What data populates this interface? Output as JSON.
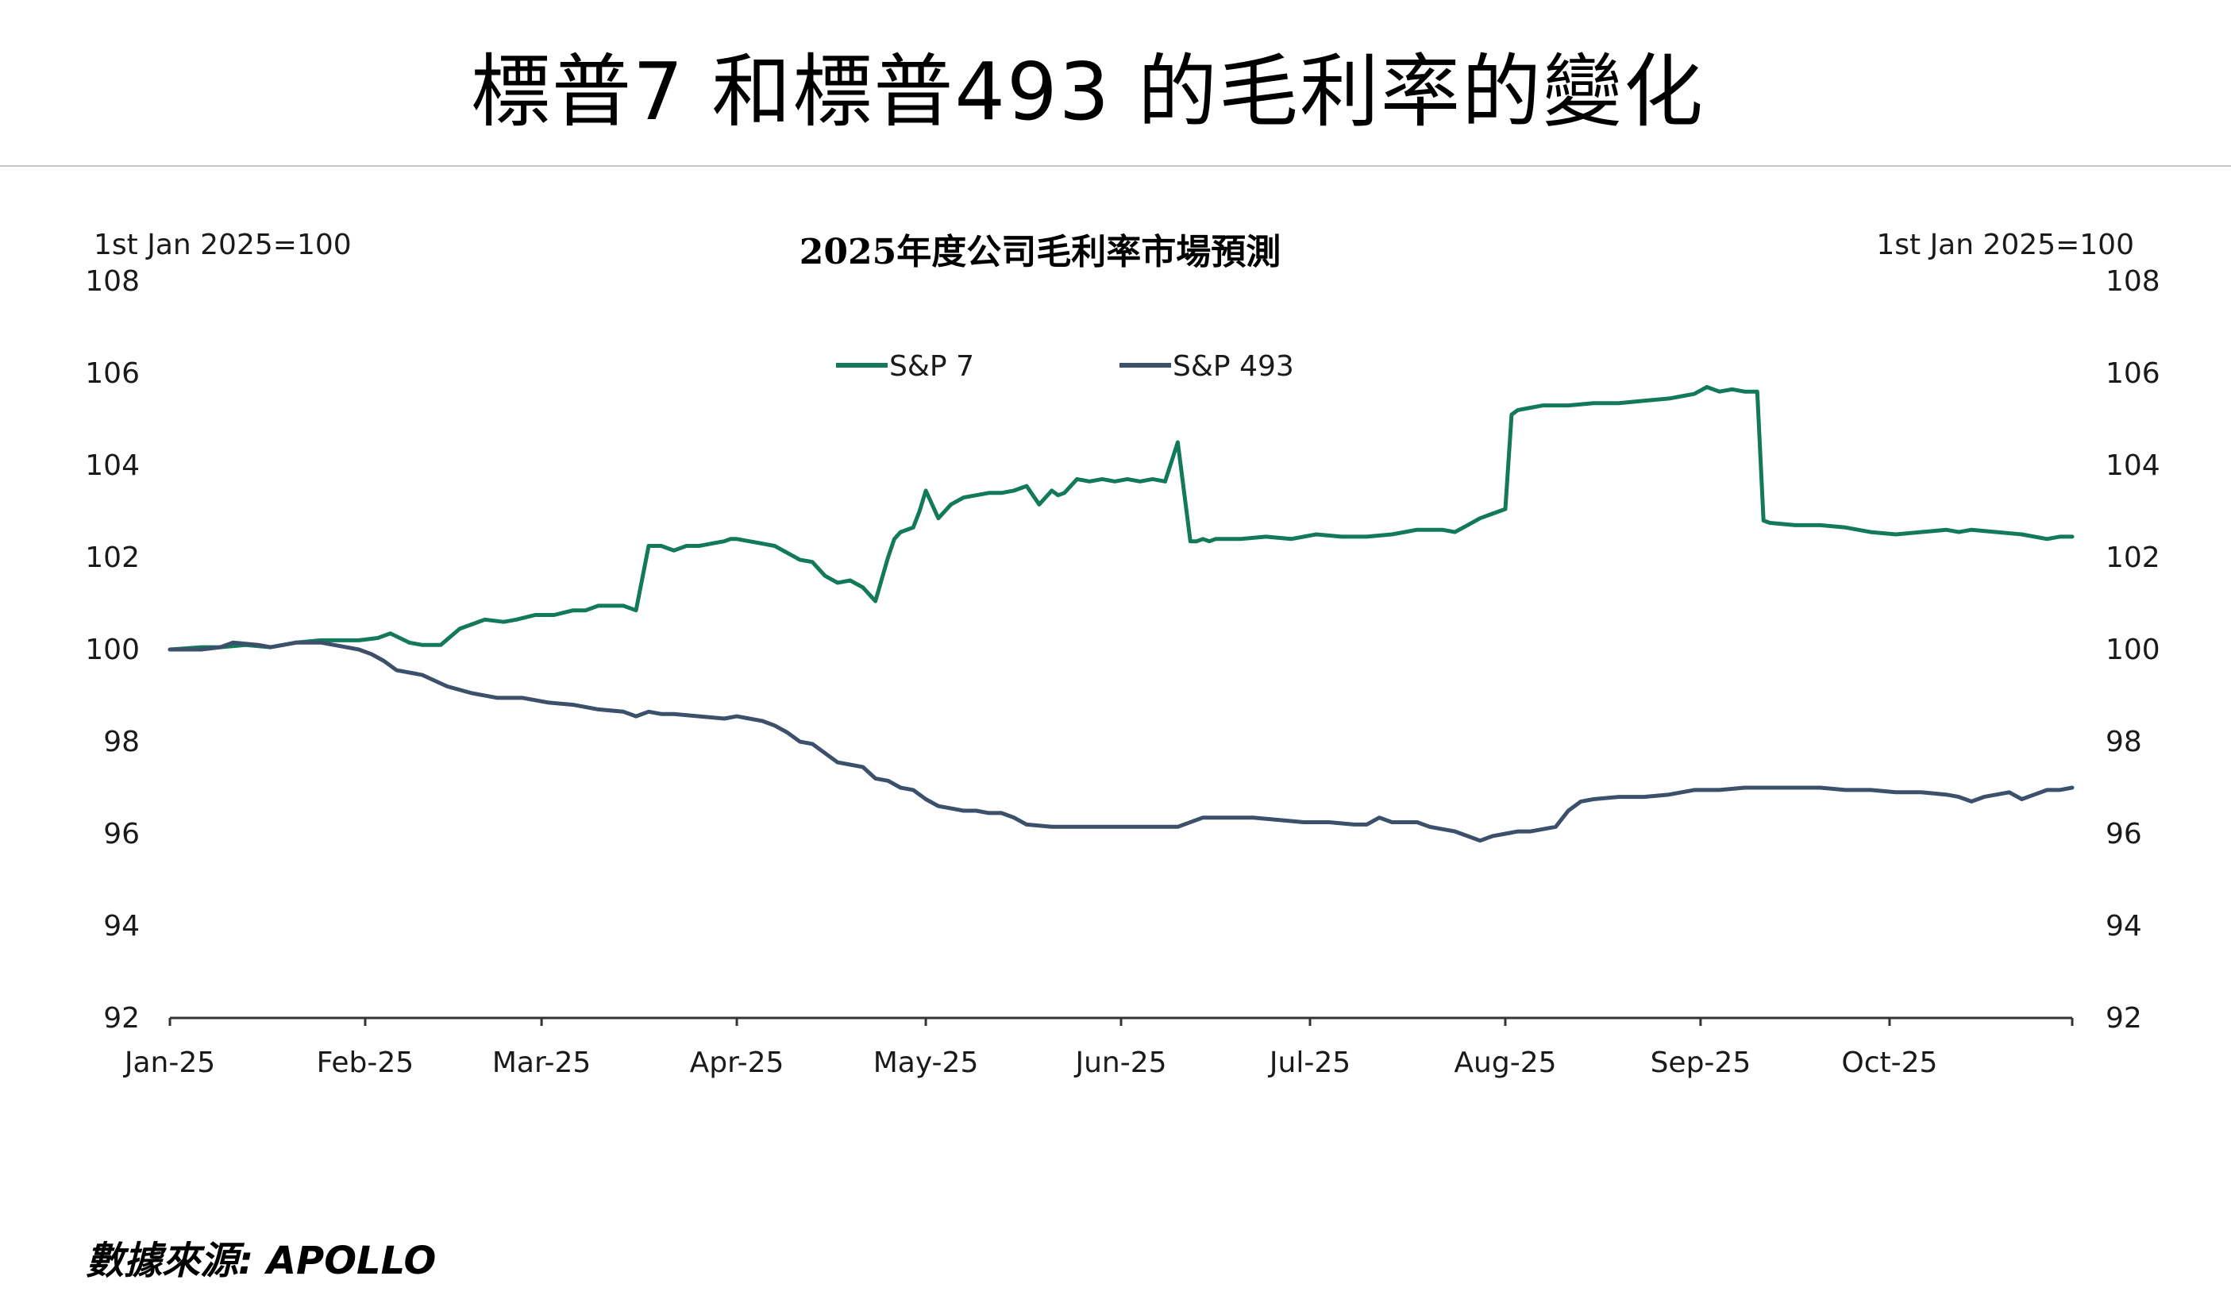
{
  "header": {
    "title": "標普7 和標普493 的毛利率的變化"
  },
  "footer": {
    "source": "數據來源: APOLLO"
  },
  "colors": {
    "sp7": "#127a5a",
    "sp493": "#3c4f6b",
    "axis": "#333333",
    "rule": "#c8c8c8"
  },
  "chart_data": {
    "type": "line",
    "title": "2025年度公司毛利率市場預測",
    "left_unit_label": "1st Jan 2025=100",
    "right_unit_label": "1st Jan 2025=100",
    "ylim": [
      92,
      108
    ],
    "yticks": [
      "108",
      "106",
      "104",
      "102",
      "100",
      "98",
      "96",
      "94",
      "92"
    ],
    "ytick_values": [
      108,
      106,
      104,
      102,
      100,
      98,
      96,
      94,
      92
    ],
    "xlim": [
      0,
      302
    ],
    "xticks": [
      "Jan-25",
      "Feb-25",
      "Mar-25",
      "Apr-25",
      "May-25",
      "Jun-25",
      "Jul-25",
      "Aug-25",
      "Sep-25",
      "Oct-25"
    ],
    "xtick_days": [
      0,
      31,
      59,
      90,
      120,
      151,
      181,
      212,
      243,
      273
    ],
    "grid": false,
    "legend_position": "top-center",
    "series": [
      {
        "name": "S&P 7",
        "x": [
          0,
          5,
          8,
          12,
          16,
          20,
          24,
          28,
          30,
          33,
          35,
          38,
          40,
          43,
          46,
          48,
          50,
          53,
          55,
          58,
          61,
          64,
          66,
          68,
          70,
          72,
          74,
          76,
          78,
          80,
          82,
          84,
          86,
          88,
          89,
          90,
          92,
          94,
          96,
          98,
          100,
          102,
          104,
          106,
          108,
          110,
          112,
          114,
          115,
          116,
          118,
          119,
          120,
          122,
          124,
          126,
          128,
          130,
          132,
          134,
          136,
          138,
          140,
          141,
          142,
          144,
          146,
          148,
          150,
          152,
          154,
          156,
          158,
          160,
          162,
          163,
          164,
          165,
          166,
          170,
          174,
          178,
          182,
          186,
          190,
          194,
          198,
          202,
          204,
          206,
          208,
          210,
          211,
          212,
          213,
          214,
          216,
          218,
          222,
          226,
          230,
          234,
          238,
          240,
          242,
          244,
          246,
          248,
          250,
          251,
          252,
          253,
          254,
          258,
          262,
          266,
          270,
          274,
          278,
          282,
          284,
          286,
          290,
          294,
          298,
          300,
          302
        ],
        "values": [
          100.0,
          100.05,
          100.05,
          100.1,
          100.05,
          100.15,
          100.2,
          100.2,
          100.2,
          100.25,
          100.35,
          100.15,
          100.1,
          100.1,
          100.45,
          100.55,
          100.65,
          100.6,
          100.65,
          100.75,
          100.75,
          100.85,
          100.85,
          100.95,
          100.95,
          100.95,
          100.85,
          102.25,
          102.25,
          102.15,
          102.25,
          102.25,
          102.3,
          102.35,
          102.4,
          102.4,
          102.35,
          102.3,
          102.25,
          102.1,
          101.95,
          101.9,
          101.6,
          101.45,
          101.5,
          101.35,
          101.05,
          102.0,
          102.4,
          102.55,
          102.65,
          103.0,
          103.45,
          102.85,
          103.15,
          103.3,
          103.35,
          103.4,
          103.4,
          103.45,
          103.55,
          103.15,
          103.45,
          103.35,
          103.4,
          103.7,
          103.65,
          103.7,
          103.65,
          103.7,
          103.65,
          103.7,
          103.65,
          104.5,
          102.35,
          102.35,
          102.4,
          102.35,
          102.4,
          102.4,
          102.45,
          102.4,
          102.5,
          102.45,
          102.45,
          102.5,
          102.6,
          102.6,
          102.55,
          102.7,
          102.85,
          102.95,
          103.0,
          103.05,
          105.1,
          105.2,
          105.25,
          105.3,
          105.3,
          105.35,
          105.35,
          105.4,
          105.45,
          105.5,
          105.55,
          105.7,
          105.6,
          105.65,
          105.6,
          105.6,
          105.6,
          102.8,
          102.75,
          102.7,
          102.7,
          102.65,
          102.55,
          102.5,
          102.55,
          102.6,
          102.55,
          102.6,
          102.55,
          102.5,
          102.4,
          102.45,
          102.45
        ]
      },
      {
        "name": "S&P 493",
        "x": [
          0,
          5,
          8,
          10,
          14,
          16,
          20,
          24,
          28,
          30,
          32,
          34,
          36,
          38,
          40,
          44,
          48,
          52,
          56,
          60,
          64,
          68,
          72,
          74,
          76,
          78,
          80,
          84,
          88,
          90,
          92,
          94,
          96,
          98,
          100,
          102,
          104,
          106,
          108,
          110,
          112,
          114,
          116,
          118,
          120,
          122,
          124,
          126,
          128,
          130,
          132,
          134,
          136,
          140,
          144,
          148,
          152,
          156,
          160,
          164,
          168,
          172,
          176,
          180,
          184,
          188,
          190,
          192,
          194,
          196,
          198,
          200,
          202,
          204,
          206,
          208,
          210,
          212,
          214,
          216,
          218,
          220,
          222,
          224,
          226,
          230,
          234,
          238,
          242,
          246,
          250,
          254,
          258,
          262,
          266,
          270,
          274,
          278,
          282,
          284,
          286,
          288,
          290,
          292,
          294,
          296,
          298,
          300,
          302
        ],
        "values": [
          100.0,
          100.0,
          100.05,
          100.15,
          100.1,
          100.05,
          100.15,
          100.15,
          100.05,
          100.0,
          99.9,
          99.75,
          99.55,
          99.5,
          99.45,
          99.2,
          99.05,
          98.95,
          98.95,
          98.85,
          98.8,
          98.7,
          98.65,
          98.55,
          98.65,
          98.6,
          98.6,
          98.55,
          98.5,
          98.55,
          98.5,
          98.45,
          98.35,
          98.2,
          98.0,
          97.95,
          97.75,
          97.55,
          97.5,
          97.45,
          97.2,
          97.15,
          97.0,
          96.95,
          96.75,
          96.6,
          96.55,
          96.5,
          96.5,
          96.45,
          96.45,
          96.35,
          96.2,
          96.15,
          96.15,
          96.15,
          96.15,
          96.15,
          96.15,
          96.35,
          96.35,
          96.35,
          96.3,
          96.25,
          96.25,
          96.2,
          96.2,
          96.35,
          96.25,
          96.25,
          96.25,
          96.15,
          96.1,
          96.05,
          95.95,
          95.85,
          95.95,
          96.0,
          96.05,
          96.05,
          96.1,
          96.15,
          96.5,
          96.7,
          96.75,
          96.8,
          96.8,
          96.85,
          96.95,
          96.95,
          97.0,
          97.0,
          97.0,
          97.0,
          96.95,
          96.95,
          96.9,
          96.9,
          96.85,
          96.8,
          96.7,
          96.8,
          96.85,
          96.9,
          96.75,
          96.85,
          96.95,
          96.95,
          97.0
        ]
      }
    ]
  }
}
